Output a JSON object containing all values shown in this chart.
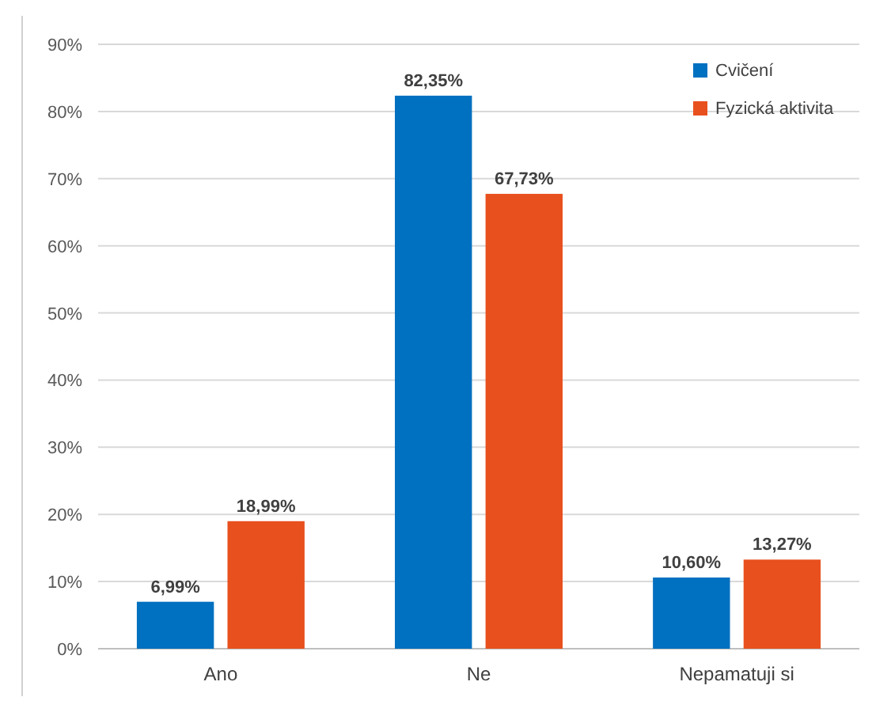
{
  "chart_data": {
    "type": "bar",
    "categories": [
      "Ano",
      "Ne",
      "Nepamatuji si"
    ],
    "series": [
      {
        "name": "Cvičení",
        "color": "#0070c0",
        "values": [
          6.99,
          82.35,
          10.6
        ],
        "value_labels": [
          "6,99%",
          "82,35%",
          "10,60%"
        ]
      },
      {
        "name": "Fyzická aktivita",
        "color": "#e8501e",
        "values": [
          18.99,
          67.73,
          13.27
        ],
        "value_labels": [
          "18,99%",
          "67,73%",
          "13,27%"
        ]
      }
    ],
    "ylim": [
      0,
      90
    ],
    "yticks": [
      {
        "value": 0,
        "label": "0%"
      },
      {
        "value": 10,
        "label": "10%"
      },
      {
        "value": 20,
        "label": "20%"
      },
      {
        "value": 30,
        "label": "30%"
      },
      {
        "value": 40,
        "label": "40%"
      },
      {
        "value": 50,
        "label": "50%"
      },
      {
        "value": 60,
        "label": "60%"
      },
      {
        "value": 70,
        "label": "70%"
      },
      {
        "value": 80,
        "label": "80%"
      },
      {
        "value": 90,
        "label": "90%"
      }
    ],
    "grid": "y",
    "legend": "top right"
  }
}
